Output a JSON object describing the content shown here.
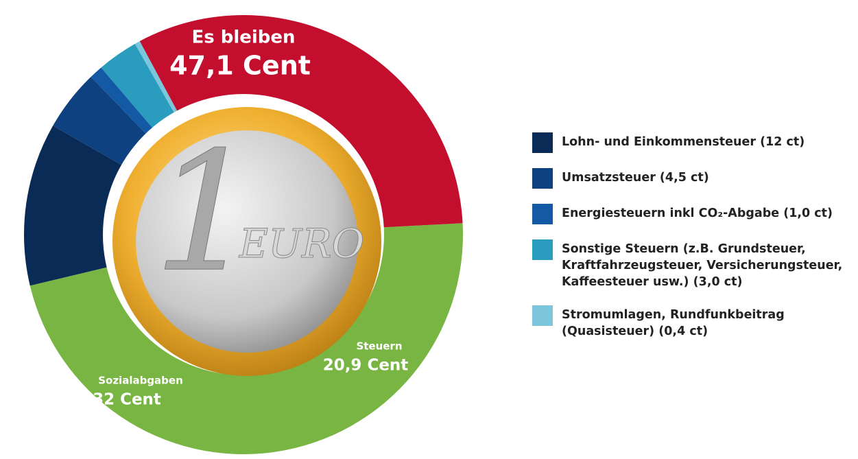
{
  "chart_data": {
    "type": "donut",
    "groups": [
      {
        "name": "Es bleiben",
        "value": 47.1,
        "value_label": "47,1 Cent",
        "color": "#79b543"
      },
      {
        "name": "Steuern",
        "value": 20.9,
        "value_label": "20,9 Cent",
        "parts": [
          {
            "name": "Lohn- und Einkommensteuer (12 ct)",
            "value": 12,
            "color": "#0b2b57"
          },
          {
            "name": "Umsatzsteuer (4,5 ct)",
            "value": 4.5,
            "color": "#0d4180"
          },
          {
            "name": "Energiesteuern inkl CO₂-Abgabe (1,0 ct)",
            "value": 1.0,
            "color": "#1459a3"
          },
          {
            "name": "Sonstige Steuern (z.B. Grundsteuer,\nKraftfahrzeugsteuer, Versicherungsteuer,\nKaffeesteuer usw.) (3,0 ct)",
            "value": 3.0,
            "color": "#2a9dbf"
          },
          {
            "name": "Stromumlagen, Rundfunkbeitrag\n(Quasisteuer) (0,4 ct)",
            "value": 0.4,
            "color": "#7cc6db"
          }
        ]
      },
      {
        "name": "Sozialabgaben",
        "value": 32,
        "value_label": "32 Cent",
        "color": "#c30f2d"
      }
    ],
    "coin": {
      "numeral": "1",
      "text": "EURO"
    }
  }
}
